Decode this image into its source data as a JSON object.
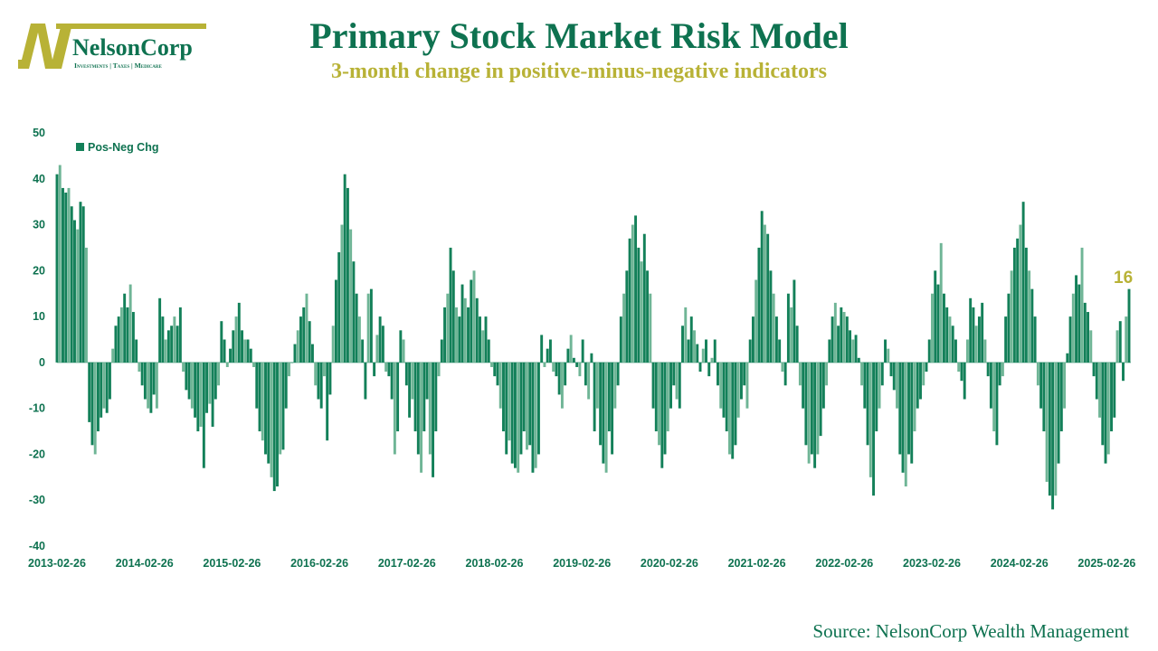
{
  "header": {
    "logo_name": "NelsonCorp",
    "logo_tagline": "Investments | Taxes | Medicare",
    "title": "Primary Stock Market Risk Model",
    "subtitle": "3-month change in positive-minus-negative indicators"
  },
  "footer": {
    "source": "Source: NelsonCorp Wealth Management"
  },
  "colors": {
    "bar": "#138059",
    "bar_light": "#6fb596",
    "title": "#0e7250",
    "accent": "#b8b236"
  },
  "chart_data": {
    "type": "bar",
    "title": "Primary Stock Market Risk Model",
    "subtitle": "3-month change in positive-minus-negative indicators",
    "xlabel": "",
    "ylabel": "",
    "ylim": [
      -40,
      50
    ],
    "yticks": [
      "50",
      "40",
      "30",
      "20",
      "10",
      "0",
      "-10",
      "-20",
      "-30",
      "-40"
    ],
    "xticks": [
      "2013-02-26",
      "2014-02-26",
      "2015-02-26",
      "2016-02-26",
      "2017-02-26",
      "2018-02-26",
      "2019-02-26",
      "2020-02-26",
      "2021-02-26",
      "2022-02-26",
      "2023-02-26",
      "2024-02-26",
      "2025-02-26"
    ],
    "legend": {
      "entries": [
        "Pos-Neg Chg"
      ],
      "position": "top-left"
    },
    "grid": false,
    "start_date": "2013-02-26",
    "frequency": "biweekly",
    "last_value_label": "16",
    "series": [
      {
        "name": "Pos-Neg Chg",
        "values": [
          41,
          43,
          38,
          37,
          38,
          34,
          31,
          29,
          35,
          34,
          25,
          -13,
          -18,
          -20,
          -15,
          -12,
          -10,
          -11,
          -8,
          3,
          8,
          10,
          12,
          15,
          12,
          17,
          11,
          5,
          -2,
          -5,
          -8,
          -10,
          -11,
          -7,
          -10,
          14,
          10,
          5,
          7,
          8,
          10,
          8,
          12,
          -2,
          -6,
          -8,
          -10,
          -12,
          -15,
          -14,
          -23,
          -11,
          -9,
          -14,
          -8,
          -5,
          9,
          5,
          -1,
          3,
          7,
          10,
          13,
          7,
          5,
          5,
          3,
          -1,
          -10,
          -15,
          -17,
          -20,
          -22,
          -25,
          -28,
          -27,
          -20,
          -19,
          -10,
          -3,
          0,
          4,
          7,
          10,
          12,
          15,
          9,
          4,
          -5,
          -8,
          -10,
          -3,
          -17,
          -7,
          8,
          18,
          24,
          30,
          41,
          38,
          29,
          22,
          15,
          10,
          5,
          -8,
          15,
          16,
          -3,
          6,
          10,
          8,
          -2,
          -3,
          -8,
          -20,
          -15,
          7,
          5,
          -5,
          -12,
          -8,
          -15,
          -20,
          -24,
          -15,
          -8,
          -20,
          -25,
          -15,
          -3,
          5,
          12,
          15,
          25,
          20,
          12,
          10,
          17,
          14,
          12,
          18,
          20,
          14,
          10,
          7,
          10,
          5,
          -1,
          -3,
          -5,
          -10,
          -15,
          -20,
          -17,
          -22,
          -23,
          -24,
          -20,
          -15,
          -19,
          -18,
          -24,
          -23,
          -20,
          6,
          -1,
          3,
          5,
          -2,
          -3,
          -7,
          -10,
          -5,
          3,
          6,
          1,
          -1,
          -3,
          5,
          -5,
          -8,
          2,
          -15,
          -10,
          -18,
          -22,
          -24,
          -15,
          -20,
          -10,
          -5,
          10,
          15,
          20,
          27,
          30,
          32,
          25,
          22,
          28,
          20,
          15,
          -10,
          -15,
          -18,
          -23,
          -20,
          -15,
          -10,
          -5,
          -8,
          -10,
          8,
          12,
          5,
          10,
          7,
          4,
          -2,
          3,
          5,
          -3,
          1,
          5,
          -5,
          -10,
          -12,
          -15,
          -20,
          -21,
          -18,
          -12,
          -8,
          -5,
          -10,
          5,
          10,
          18,
          25,
          33,
          30,
          28,
          20,
          15,
          10,
          5,
          -2,
          -5,
          15,
          12,
          18,
          8,
          -5,
          -10,
          -18,
          -22,
          -20,
          -23,
          -20,
          -16,
          -10,
          -5,
          5,
          10,
          13,
          8,
          12,
          11,
          10,
          7,
          5,
          6,
          1,
          -5,
          -10,
          -18,
          -25,
          -29,
          -15,
          -10,
          -5,
          5,
          3,
          -3,
          -6,
          -10,
          -20,
          -24,
          -27,
          -20,
          -22,
          -15,
          -10,
          -8,
          -5,
          -2,
          5,
          15,
          20,
          17,
          26,
          15,
          12,
          10,
          8,
          5,
          -2,
          -4,
          -8,
          5,
          14,
          12,
          8,
          10,
          13,
          5,
          -3,
          -10,
          -15,
          -18,
          -5,
          -3,
          10,
          15,
          20,
          25,
          27,
          30,
          35,
          25,
          20,
          16,
          10,
          -5,
          -10,
          -15,
          -26,
          -29,
          -32,
          -29,
          -22,
          -15,
          -10,
          2,
          10,
          15,
          19,
          17,
          25,
          13,
          11,
          7,
          -3,
          -8,
          -12,
          -18,
          -22,
          -20,
          -15,
          -12,
          7,
          9,
          -4,
          10,
          16
        ]
      }
    ]
  }
}
